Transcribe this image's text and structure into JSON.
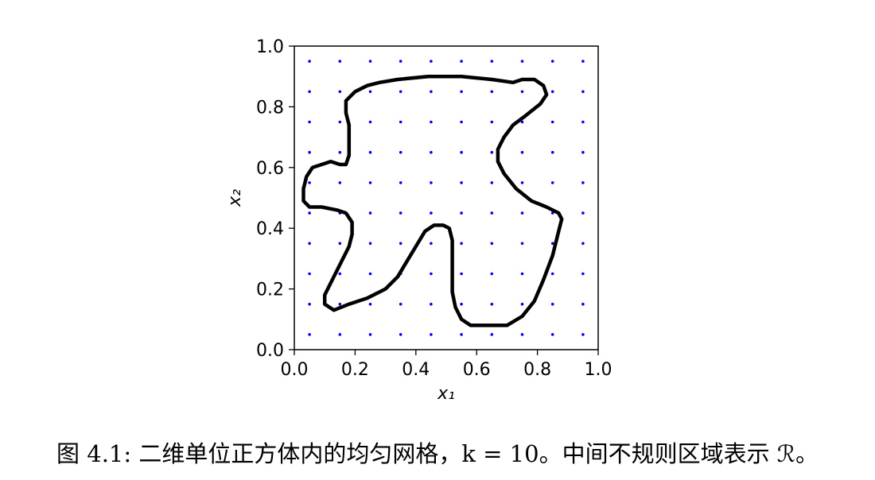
{
  "chart_data": {
    "type": "scatter",
    "xlabel": "x₁",
    "ylabel": "x₂",
    "xlim": [
      0.0,
      1.0
    ],
    "ylim": [
      0.0,
      1.0
    ],
    "xticks": [
      "0.0",
      "0.2",
      "0.4",
      "0.6",
      "0.8",
      "1.0"
    ],
    "yticks": [
      "0.0",
      "0.2",
      "0.4",
      "0.6",
      "0.8",
      "1.0"
    ],
    "grid": false,
    "series": [
      {
        "kind": "points",
        "color": "#0000ff",
        "x": [
          0.05,
          0.15,
          0.25,
          0.35,
          0.45,
          0.55,
          0.65,
          0.75,
          0.85,
          0.95
        ],
        "y": [
          0.05,
          0.15,
          0.25,
          0.35,
          0.45,
          0.55,
          0.65,
          0.75,
          0.85,
          0.95
        ]
      },
      {
        "kind": "curve",
        "color": "#000000",
        "points": [
          [
            0.28,
            0.88
          ],
          [
            0.34,
            0.89
          ],
          [
            0.44,
            0.9
          ],
          [
            0.55,
            0.9
          ],
          [
            0.65,
            0.89
          ],
          [
            0.72,
            0.88
          ],
          [
            0.75,
            0.89
          ],
          [
            0.79,
            0.89
          ],
          [
            0.82,
            0.87
          ],
          [
            0.83,
            0.84
          ],
          [
            0.81,
            0.81
          ],
          [
            0.76,
            0.77
          ],
          [
            0.72,
            0.74
          ],
          [
            0.69,
            0.7
          ],
          [
            0.67,
            0.66
          ],
          [
            0.67,
            0.62
          ],
          [
            0.69,
            0.58
          ],
          [
            0.73,
            0.53
          ],
          [
            0.78,
            0.49
          ],
          [
            0.83,
            0.47
          ],
          [
            0.87,
            0.45
          ],
          [
            0.88,
            0.43
          ],
          [
            0.87,
            0.39
          ],
          [
            0.85,
            0.31
          ],
          [
            0.82,
            0.23
          ],
          [
            0.79,
            0.16
          ],
          [
            0.75,
            0.11
          ],
          [
            0.7,
            0.08
          ],
          [
            0.64,
            0.08
          ],
          [
            0.58,
            0.08
          ],
          [
            0.55,
            0.1
          ],
          [
            0.53,
            0.14
          ],
          [
            0.52,
            0.19
          ],
          [
            0.52,
            0.25
          ],
          [
            0.52,
            0.31
          ],
          [
            0.52,
            0.36
          ],
          [
            0.51,
            0.4
          ],
          [
            0.49,
            0.41
          ],
          [
            0.46,
            0.41
          ],
          [
            0.43,
            0.39
          ],
          [
            0.4,
            0.34
          ],
          [
            0.37,
            0.29
          ],
          [
            0.34,
            0.24
          ],
          [
            0.3,
            0.2
          ],
          [
            0.24,
            0.17
          ],
          [
            0.18,
            0.15
          ],
          [
            0.13,
            0.13
          ],
          [
            0.1,
            0.15
          ],
          [
            0.1,
            0.18
          ],
          [
            0.12,
            0.22
          ],
          [
            0.15,
            0.28
          ],
          [
            0.18,
            0.34
          ],
          [
            0.19,
            0.38
          ],
          [
            0.19,
            0.42
          ],
          [
            0.17,
            0.45
          ],
          [
            0.14,
            0.46
          ],
          [
            0.09,
            0.47
          ],
          [
            0.05,
            0.47
          ],
          [
            0.03,
            0.49
          ],
          [
            0.03,
            0.53
          ],
          [
            0.04,
            0.57
          ],
          [
            0.06,
            0.6
          ],
          [
            0.09,
            0.61
          ],
          [
            0.12,
            0.62
          ],
          [
            0.15,
            0.61
          ],
          [
            0.17,
            0.61
          ],
          [
            0.18,
            0.64
          ],
          [
            0.18,
            0.69
          ],
          [
            0.18,
            0.74
          ],
          [
            0.17,
            0.78
          ],
          [
            0.17,
            0.82
          ],
          [
            0.2,
            0.85
          ],
          [
            0.24,
            0.87
          ],
          [
            0.28,
            0.88
          ]
        ]
      }
    ]
  },
  "caption": "图 4.1: 二维单位正方体内的均匀网格，k = 10。中间不规则区域表示 ℛ。"
}
